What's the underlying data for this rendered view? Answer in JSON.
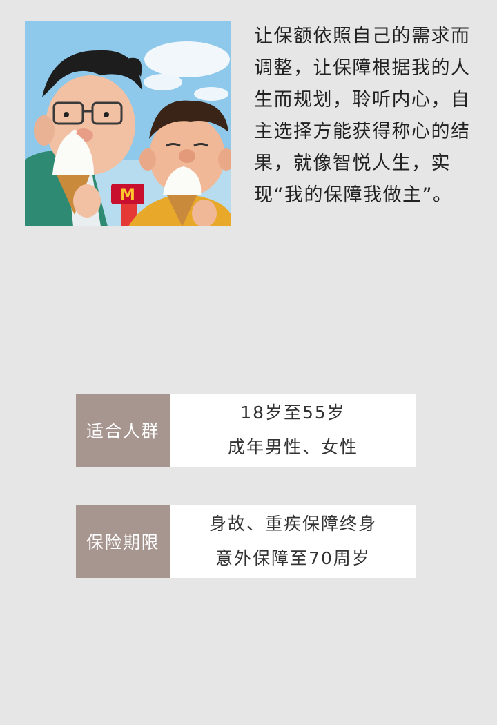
{
  "intro": {
    "text": "让保额依照自己的需求而调整，让保障根据我的人生而规划，聆听内心，自主选择方能获得称心的结果，就像智悦人生，实现“我的保障我做主”。"
  },
  "illustration": {
    "sign_text": "M",
    "sky_color": "#8ec8ea",
    "accent_colors": [
      "#2f8a73",
      "#e8a82a",
      "#c8102e",
      "#ffc72c"
    ]
  },
  "info": [
    {
      "label": "适合人群",
      "lines": [
        "18岁至55岁",
        "成年男性、女性"
      ]
    },
    {
      "label": "保险期限",
      "lines": [
        "身故、重疾保障终身",
        "意外保障至70周岁"
      ]
    }
  ],
  "colors": {
    "background": "#e6e6e6",
    "label_bg": "#a79690",
    "value_bg": "#ffffff"
  }
}
